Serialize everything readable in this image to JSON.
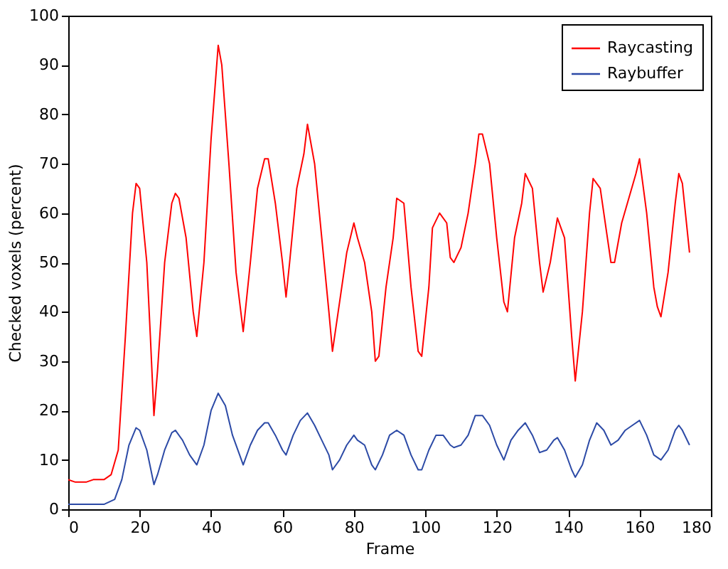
{
  "chart_data": {
    "type": "line",
    "xlabel": "Frame",
    "ylabel": "Checked voxels (percent)",
    "xlim": [
      0,
      180
    ],
    "xticks": [
      0,
      20,
      40,
      60,
      80,
      100,
      120,
      140,
      160,
      180
    ],
    "ylim": [
      0,
      100
    ],
    "yticks": [
      0,
      10,
      20,
      30,
      40,
      50,
      60,
      70,
      80,
      90,
      100
    ],
    "grid": false,
    "legend": "top right",
    "marker": "none",
    "line_style": "solid",
    "series": [
      {
        "name": "Raycasting",
        "color": "#ff0000",
        "x": [
          0,
          2,
          5,
          7,
          10,
          12,
          14,
          16,
          18,
          19,
          20,
          22,
          23,
          24,
          25,
          27,
          29,
          30,
          31,
          33,
          35,
          36,
          38,
          40,
          42,
          43,
          45,
          47,
          49,
          51,
          53,
          55,
          56,
          58,
          60,
          61,
          62,
          64,
          66,
          67,
          69,
          71,
          73,
          74,
          76,
          78,
          80,
          81,
          83,
          85,
          86,
          87,
          89,
          91,
          92,
          94,
          96,
          98,
          99,
          101,
          102,
          104,
          106,
          107,
          108,
          110,
          112,
          114,
          115,
          116,
          118,
          120,
          122,
          123,
          125,
          127,
          128,
          130,
          132,
          133,
          135,
          137,
          139,
          141,
          142,
          144,
          146,
          147,
          149,
          151,
          152,
          153,
          155,
          157,
          159,
          160,
          162,
          164,
          165,
          166,
          168,
          170,
          171,
          172,
          174
        ],
        "values": [
          6,
          5.5,
          5.5,
          6,
          6,
          7,
          12,
          35,
          60,
          66,
          65,
          50,
          35,
          19,
          28,
          50,
          62,
          64,
          63,
          55,
          40,
          35,
          50,
          75,
          94,
          90,
          70,
          48,
          36,
          50,
          65,
          71,
          71,
          62,
          50,
          43,
          50,
          65,
          72,
          78,
          70,
          55,
          40,
          32,
          42,
          52,
          58,
          55,
          50,
          40,
          30,
          31,
          45,
          55,
          63,
          62,
          45,
          32,
          31,
          45,
          57,
          60,
          58,
          51,
          50,
          53,
          60,
          70,
          76,
          76,
          70,
          55,
          42,
          40,
          55,
          62,
          68,
          65,
          50,
          44,
          50,
          59,
          55,
          35,
          26,
          40,
          60,
          67,
          65,
          55,
          50,
          50,
          58,
          63,
          68,
          71,
          60,
          45,
          41,
          39,
          48,
          62,
          68,
          66,
          52
        ]
      },
      {
        "name": "Raybuffer",
        "color": "#2c4aa6",
        "x": [
          0,
          10,
          13,
          15,
          17,
          19,
          20,
          22,
          24,
          25,
          27,
          29,
          30,
          32,
          34,
          36,
          38,
          40,
          42,
          44,
          46,
          48,
          49,
          51,
          53,
          55,
          56,
          58,
          60,
          61,
          63,
          65,
          67,
          69,
          71,
          73,
          74,
          76,
          78,
          80,
          81,
          83,
          85,
          86,
          88,
          90,
          92,
          94,
          96,
          98,
          99,
          101,
          103,
          105,
          107,
          108,
          110,
          112,
          114,
          116,
          118,
          120,
          122,
          124,
          126,
          128,
          130,
          132,
          134,
          136,
          137,
          139,
          141,
          142,
          144,
          146,
          148,
          150,
          152,
          154,
          156,
          158,
          160,
          162,
          164,
          166,
          168,
          170,
          171,
          172,
          174
        ],
        "values": [
          1,
          1,
          2,
          6,
          13,
          16.5,
          16,
          12,
          5,
          7,
          12,
          15.5,
          16,
          14,
          11,
          9,
          13,
          20,
          23.5,
          21,
          15,
          11,
          9,
          13,
          16,
          17.5,
          17.5,
          15,
          12,
          11,
          15,
          18,
          19.5,
          17,
          14,
          11,
          8,
          10,
          13,
          15,
          14,
          13,
          9,
          8,
          11,
          15,
          16,
          15,
          11,
          8,
          8,
          12,
          15,
          15,
          13,
          12.5,
          13,
          15,
          19,
          19,
          17,
          13,
          10,
          14,
          16,
          17.5,
          15,
          11.5,
          12,
          14,
          14.5,
          12,
          8,
          6.5,
          9,
          14,
          17.5,
          16,
          13,
          14,
          16,
          17,
          18,
          15,
          11,
          10,
          12,
          16,
          17,
          16,
          13
        ]
      }
    ]
  }
}
